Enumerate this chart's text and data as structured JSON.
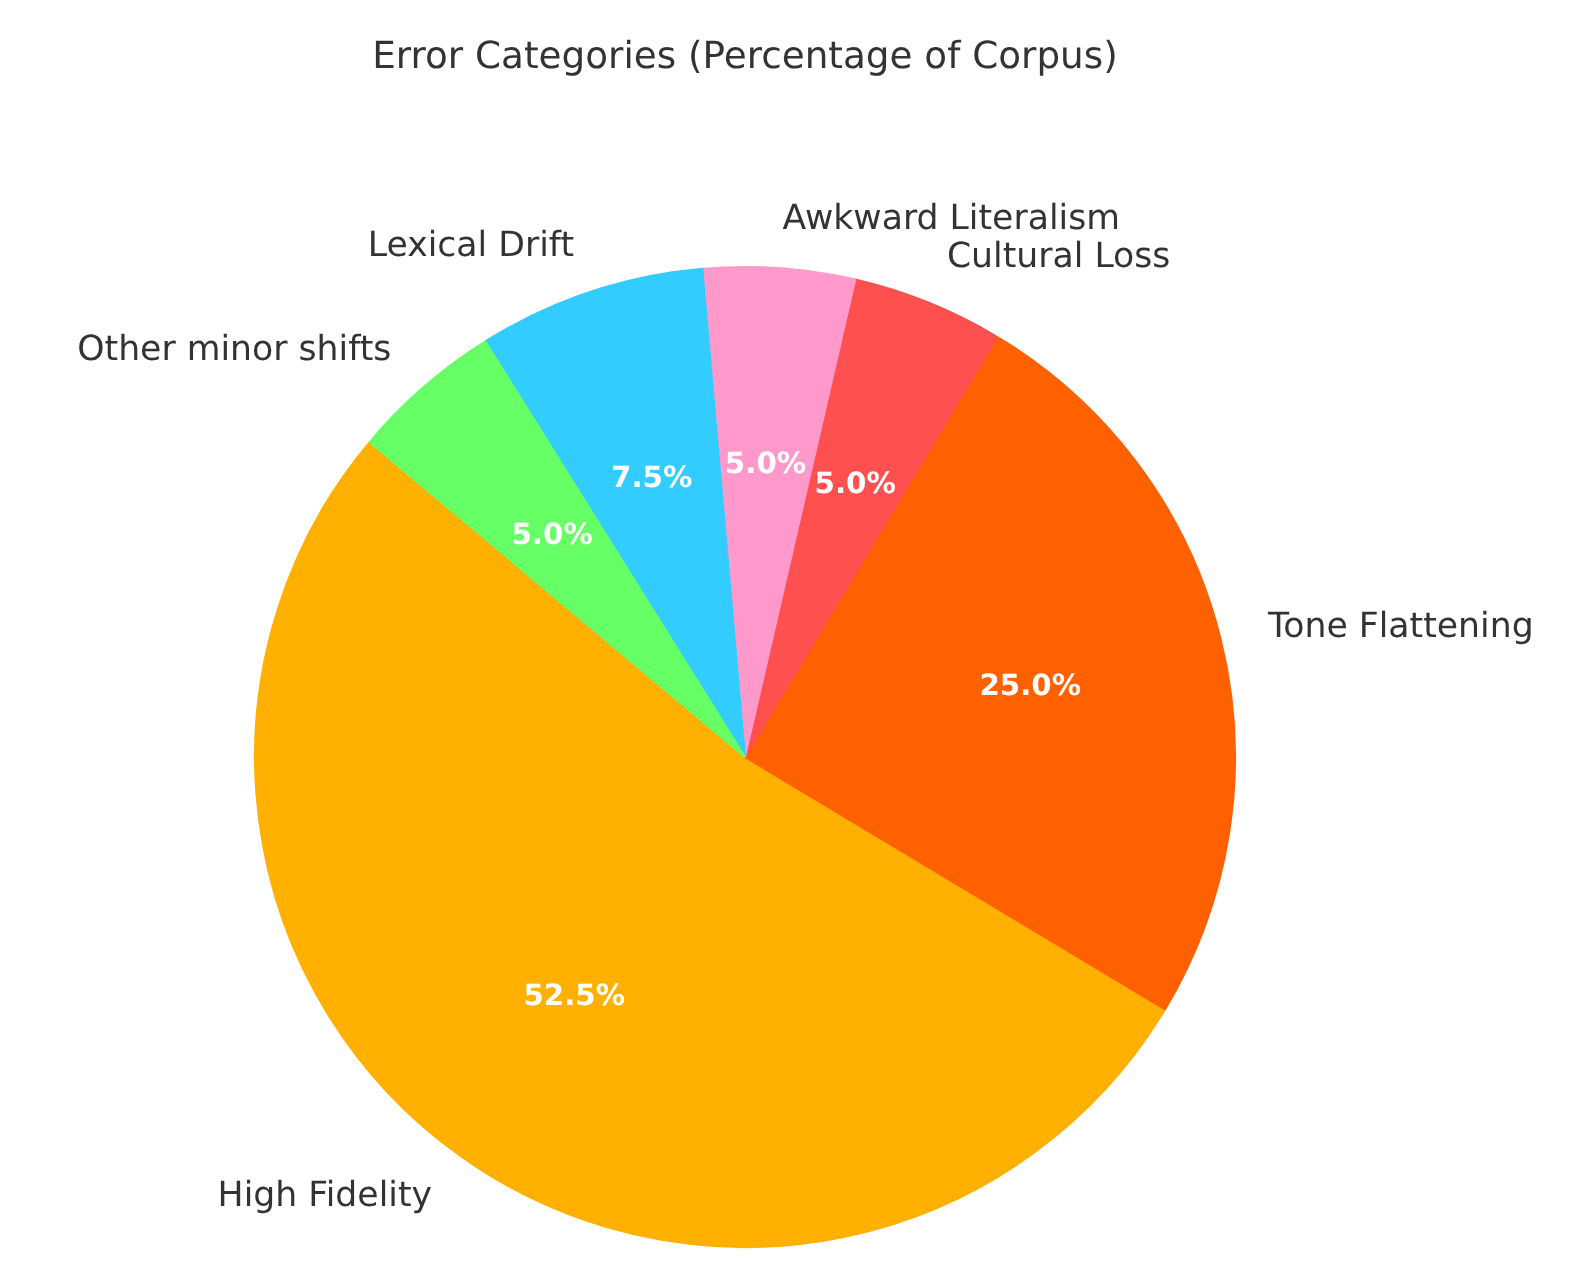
{
  "chart_data": {
    "type": "pie",
    "title": "Error Categories (Percentage of Corpus)",
    "categories": [
      "High Fidelity",
      "Tone Flattening",
      "Cultural Loss",
      "Awkward Literalism",
      "Lexical Drift",
      "Other minor shifts"
    ],
    "values": [
      52.5,
      25.0,
      5.0,
      5.0,
      7.5,
      5.0
    ],
    "colors": [
      "#ffb000",
      "#ff6000",
      "#ff5050",
      "#ff99cc",
      "#33ccff",
      "#66ff66"
    ],
    "value_labels": [
      "52.5%",
      "25.0%",
      "5.0%",
      "5.0%",
      "7.5%",
      "5.0%"
    ]
  }
}
